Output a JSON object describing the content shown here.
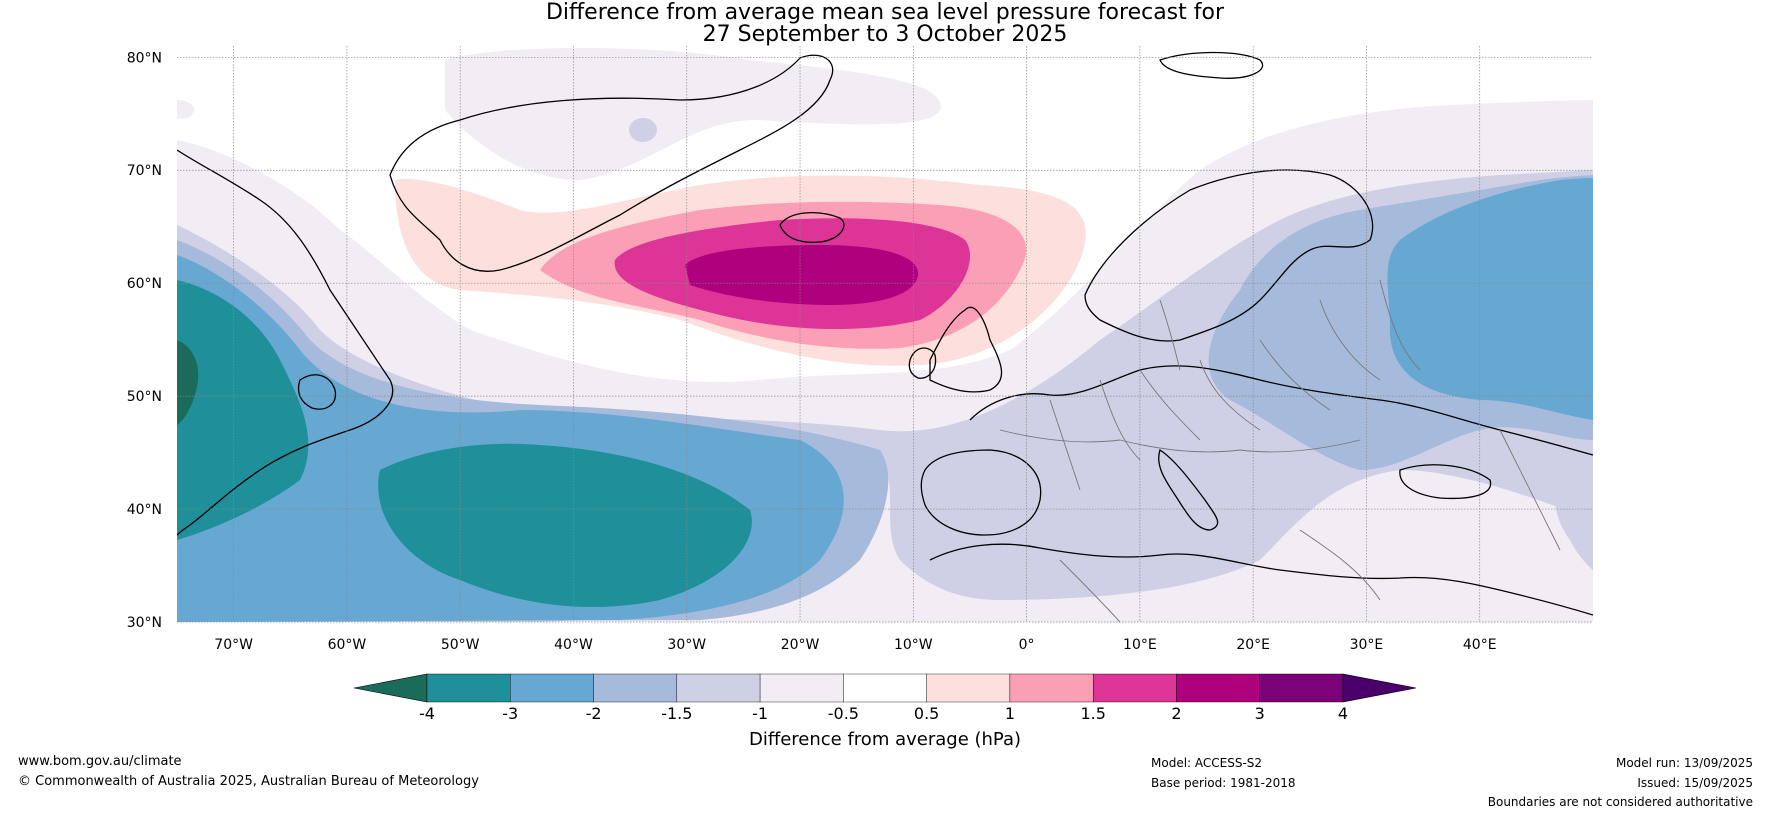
{
  "title": {
    "line1": "Difference from average mean sea level pressure forecast for",
    "line2": "27 September to 3 October 2025"
  },
  "map": {
    "latitude_labels": [
      "80°N",
      "70°N",
      "60°N",
      "50°N",
      "40°N",
      "30°N"
    ],
    "longitude_labels": [
      "70°W",
      "60°W",
      "50°W",
      "40°W",
      "30°W",
      "20°W",
      "10°W",
      "0°",
      "10°E",
      "20°E",
      "30°E",
      "40°E"
    ],
    "extent": {
      "lon_min": -75,
      "lon_max": 50,
      "lat_min": 30,
      "lat_max": 81
    }
  },
  "colorbar": {
    "title": "Difference from average (hPa)",
    "ticks": [
      "-4",
      "-3",
      "-2",
      "-1.5",
      "-1",
      "-0.5",
      "0.5",
      "1",
      "1.5",
      "2",
      "3",
      "4"
    ],
    "colors": [
      "#1b6b5a",
      "#1f8f99",
      "#66a8d1",
      "#a6bbdc",
      "#cfd0e6",
      "#f2ecf5",
      "#ffffff",
      "#fde0dd",
      "#fa9fb5",
      "#dd3497",
      "#ae017e",
      "#7a0177",
      "#49006a"
    ]
  },
  "footer": {
    "website": "www.bom.gov.au/climate",
    "copyright": "© Commonwealth of Australia 2025, Australian Bureau of Meteorology",
    "model": "Model: ACCESS-S2",
    "base_period": "Base period: 1981-2018",
    "model_run": "Model run: 13/09/2025",
    "issued": "Issued: 15/09/2025",
    "disclaimer": "Boundaries are not considered authoritative"
  }
}
